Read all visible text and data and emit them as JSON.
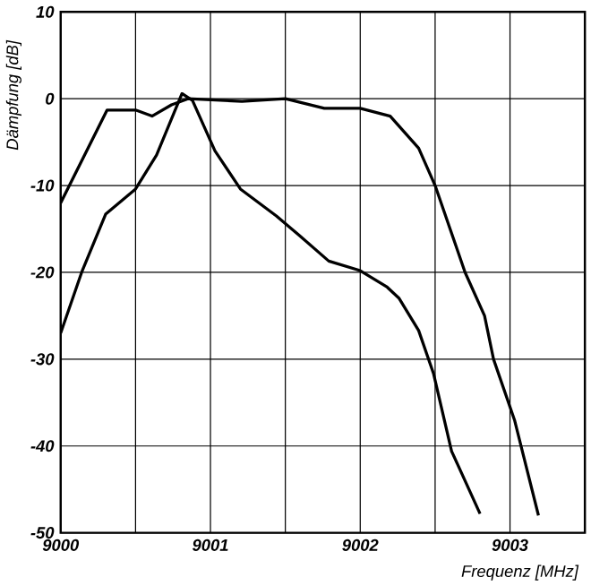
{
  "chart_data": {
    "type": "line",
    "xlabel": "Frequenz [MHz]",
    "ylabel": "Dämpfung [dB]",
    "xlim": [
      9000,
      9003.5
    ],
    "ylim": [
      -50,
      10
    ],
    "xticks": [
      9000,
      {
        "value": 9000.5,
        "label": null
      },
      9001,
      {
        "value": 9001.5,
        "label": null
      },
      9002,
      {
        "value": 9002.5,
        "label": null
      },
      9003,
      {
        "value": 9003.5,
        "label": null
      }
    ],
    "yticks": [
      -50,
      -40,
      -30,
      -20,
      -10,
      0,
      10
    ],
    "grid": true,
    "marker": "none",
    "line_style": "solid",
    "series": [
      {
        "color": "#000000",
        "x": [
          9000,
          9000.31,
          9000.5,
          9000.61,
          9000.74,
          9000.85,
          9001.21,
          9001.5,
          9001.76,
          9002,
          9002.2,
          9002.39,
          9002.5,
          9002.7,
          9002.83,
          9002.89,
          9003.03,
          9003.19
        ],
        "values": [
          -12,
          -1.3,
          -1.3,
          -2,
          -0.7,
          0,
          -0.3,
          0,
          -1.1,
          -1.1,
          -2,
          -5.7,
          -10,
          -20,
          -25,
          -30,
          -37,
          -48
        ]
      },
      {
        "color": "#000000",
        "x": [
          9000,
          9000.14,
          9000.3,
          9000.5,
          9000.64,
          9000.81,
          9000.88,
          9001.03,
          9001.2,
          9001.44,
          9001.59,
          9001.79,
          9002,
          9002.18,
          9002.26,
          9002.39,
          9002.49,
          9002.61,
          9002.8
        ],
        "values": [
          -27,
          -20,
          -13.3,
          -10.4,
          -6.5,
          0.6,
          -0.2,
          -6,
          -10.4,
          -13.5,
          -15.7,
          -18.7,
          -19.8,
          -21.7,
          -23,
          -26.7,
          -31.7,
          -40.6,
          -47.8
        ]
      }
    ]
  }
}
